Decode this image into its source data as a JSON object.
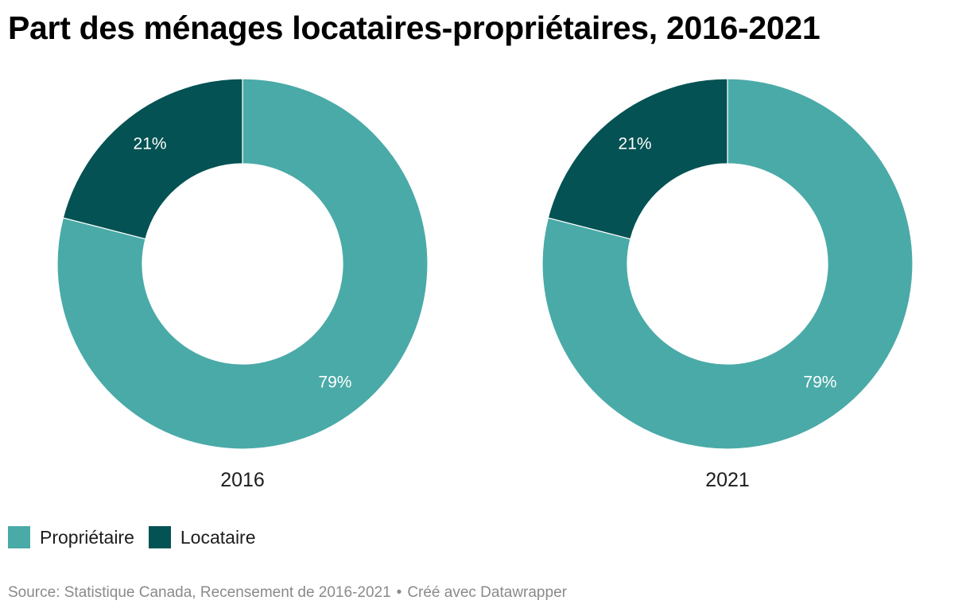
{
  "title": "Part des ménages locataires-propriétaires, 2016-2021",
  "chart_data": {
    "type": "pie",
    "variant": "donut",
    "title": "Part des ménages locataires-propriétaires, 2016-2021",
    "categories": [
      "Propriétaire",
      "Locataire"
    ],
    "colors": {
      "Propriétaire": "#4aaaa8",
      "Locataire": "#045253"
    },
    "charts": [
      {
        "label": "2016",
        "slices": [
          {
            "name": "Propriétaire",
            "value": 79,
            "label": "79%"
          },
          {
            "name": "Locataire",
            "value": 21,
            "label": "21%"
          }
        ]
      },
      {
        "label": "2021",
        "slices": [
          {
            "name": "Propriétaire",
            "value": 79,
            "label": "79%"
          },
          {
            "name": "Locataire",
            "value": 21,
            "label": "21%"
          }
        ]
      }
    ],
    "legend_position": "bottom-left"
  },
  "legend": [
    {
      "label": "Propriétaire",
      "color": "#4aaaa8"
    },
    {
      "label": "Locataire",
      "color": "#045253"
    }
  ],
  "footer": {
    "source": "Source: Statistique Canada, Recensement de 2016-2021",
    "separator": "•",
    "credit": "Créé avec Datawrapper"
  }
}
